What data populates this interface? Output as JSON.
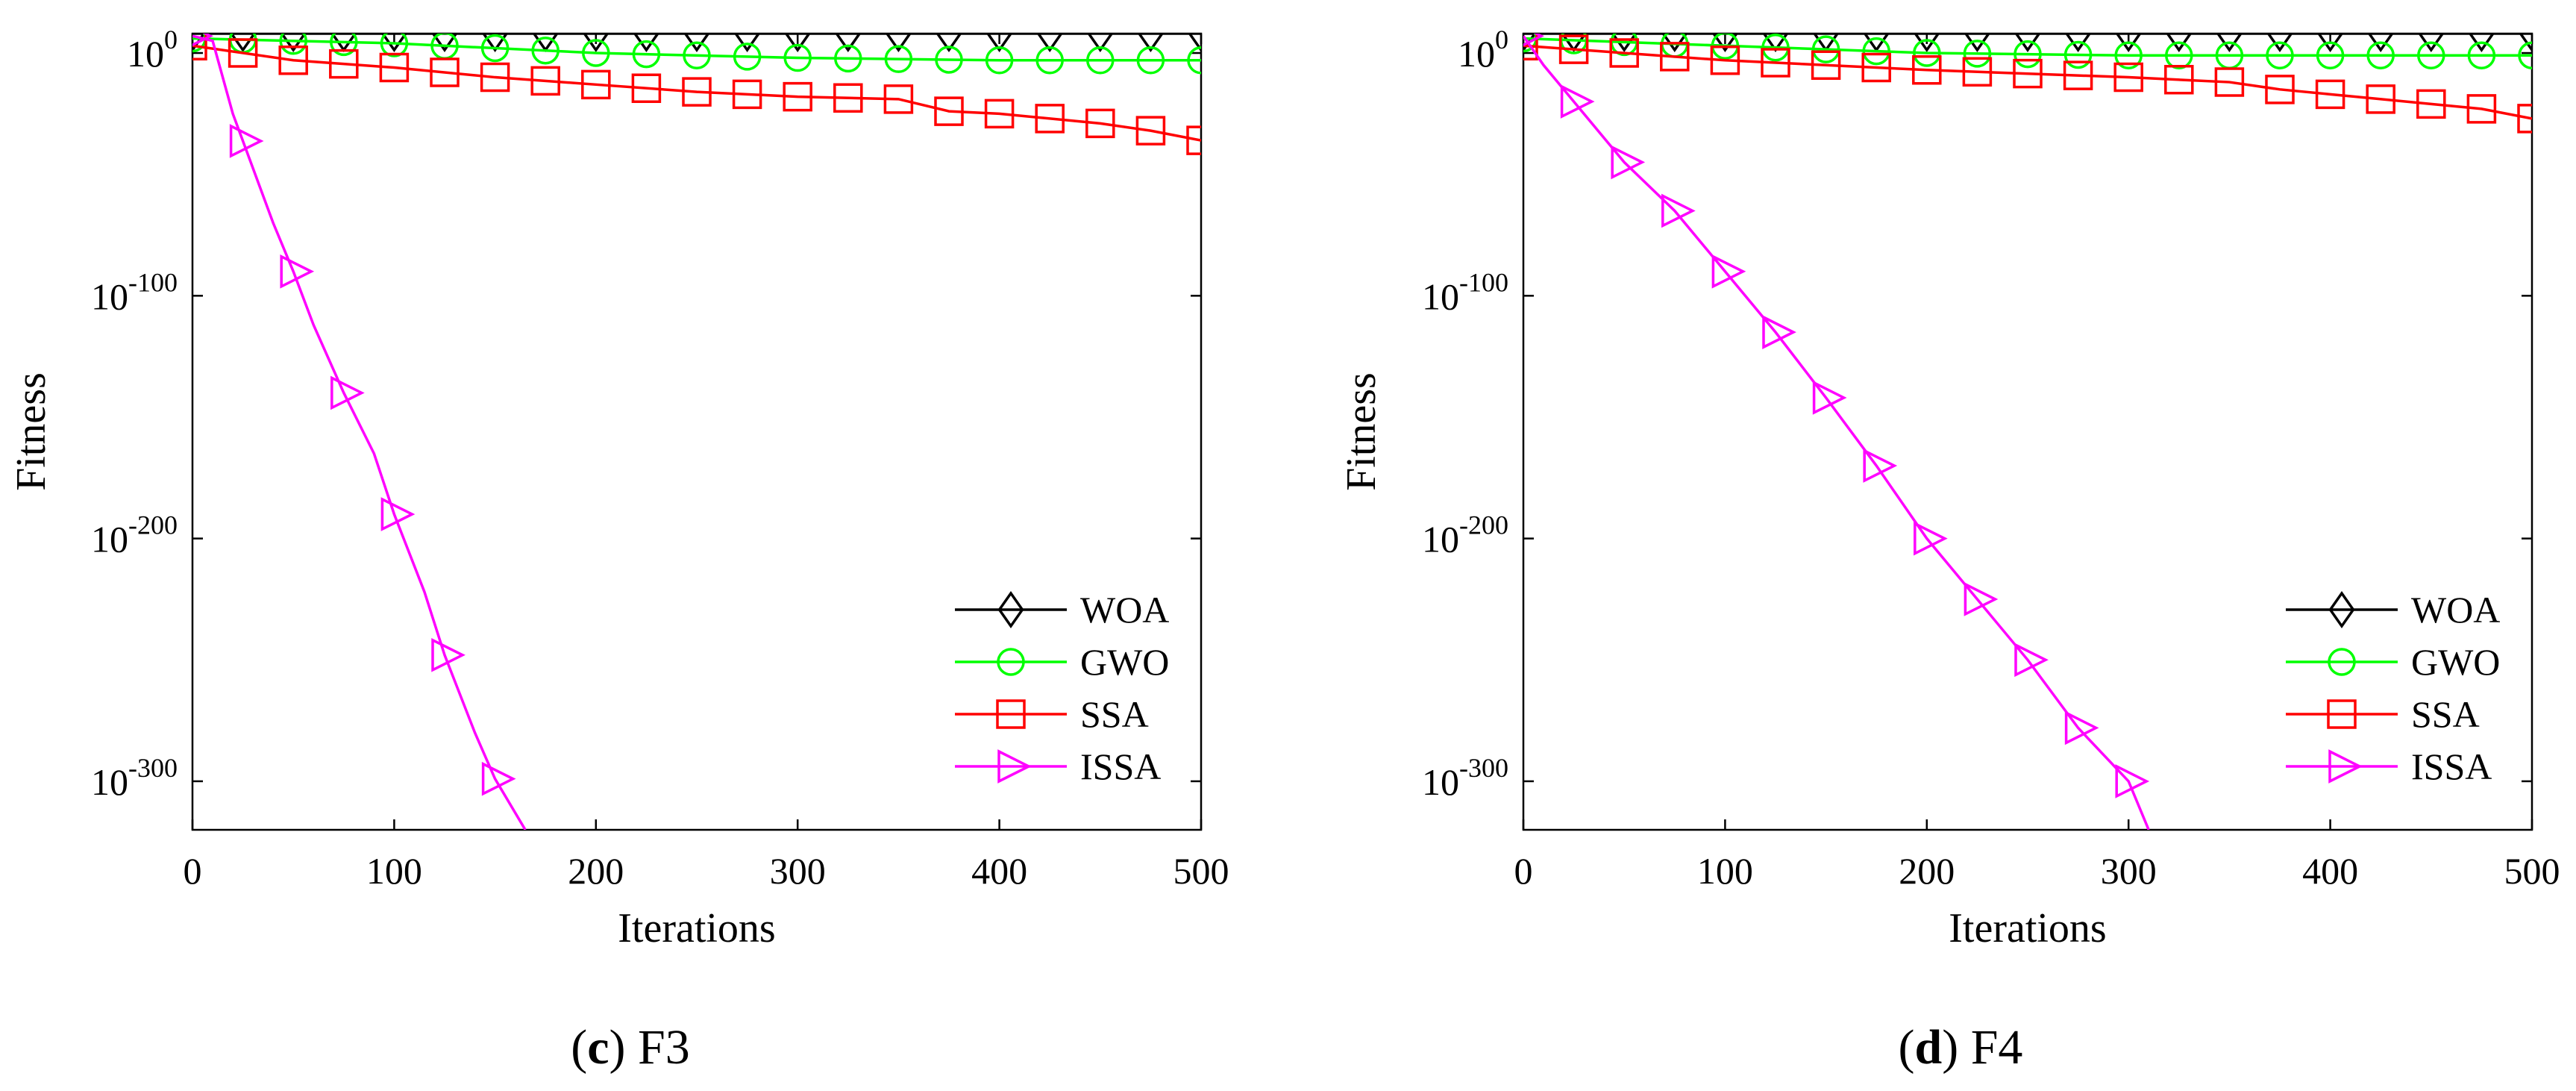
{
  "chart_data": [
    {
      "type": "line",
      "subplot_letter": "c",
      "caption": "F3",
      "xlabel": "Iterations",
      "ylabel": "Fitness",
      "x_scale": "linear",
      "y_scale": "log",
      "xlim": [
        0,
        500
      ],
      "ylim_exp": [
        -320,
        8
      ],
      "x_ticks": [
        0,
        100,
        200,
        300,
        400,
        500
      ],
      "y_ticks_exp": [
        0,
        -100,
        -200,
        -300
      ],
      "y_tick_base": "10",
      "grid": false,
      "legend_position": "bottom-right",
      "series": [
        {
          "name": "WOA",
          "color": "#000000",
          "marker": "diamond",
          "points_log10": [
            [
              0,
              8
            ],
            [
              500,
              8
            ]
          ]
        },
        {
          "name": "GWO",
          "color": "#00ff00",
          "marker": "circle",
          "points_log10": [
            [
              0,
              6
            ],
            [
              100,
              4
            ],
            [
              200,
              0
            ],
            [
              300,
              -2
            ],
            [
              400,
              -3
            ],
            [
              500,
              -3
            ]
          ]
        },
        {
          "name": "SSA",
          "color": "#ff0000",
          "marker": "square",
          "points_log10": [
            [
              0,
              3
            ],
            [
              50,
              -3
            ],
            [
              100,
              -6
            ],
            [
              150,
              -10
            ],
            [
              200,
              -13
            ],
            [
              250,
              -16
            ],
            [
              300,
              -18
            ],
            [
              350,
              -19
            ],
            [
              375,
              -24
            ],
            [
              400,
              -25
            ],
            [
              450,
              -29
            ],
            [
              475,
              -32
            ],
            [
              500,
              -36
            ]
          ]
        },
        {
          "name": "ISSA",
          "color": "#ff00ff",
          "marker": "triangle-right",
          "points_log10": [
            [
              0,
              7
            ],
            [
              10,
              5
            ],
            [
              20,
              -25
            ],
            [
              40,
              -70
            ],
            [
              50,
              -90
            ],
            [
              60,
              -112
            ],
            [
              75,
              -140
            ],
            [
              90,
              -165
            ],
            [
              100,
              -190
            ],
            [
              115,
              -222
            ],
            [
              125,
              -248
            ],
            [
              140,
              -280
            ],
            [
              150,
              -299
            ],
            [
              165,
              -320
            ]
          ]
        }
      ]
    },
    {
      "type": "line",
      "subplot_letter": "d",
      "caption": "F4",
      "xlabel": "Iterations",
      "ylabel": "Fitness",
      "x_scale": "linear",
      "y_scale": "log",
      "xlim": [
        0,
        500
      ],
      "ylim_exp": [
        -320,
        8
      ],
      "x_ticks": [
        0,
        100,
        200,
        300,
        400,
        500
      ],
      "y_ticks_exp": [
        0,
        -100,
        -200,
        -300
      ],
      "y_tick_base": "10",
      "grid": false,
      "legend_position": "bottom-right",
      "series": [
        {
          "name": "WOA",
          "color": "#000000",
          "marker": "diamond",
          "points_log10": [
            [
              0,
              8
            ],
            [
              500,
              8
            ]
          ]
        },
        {
          "name": "GWO",
          "color": "#00ff00",
          "marker": "circle",
          "points_log10": [
            [
              0,
              6
            ],
            [
              100,
              3
            ],
            [
              200,
              0
            ],
            [
              300,
              -1
            ],
            [
              400,
              -1
            ],
            [
              500,
              -1
            ]
          ]
        },
        {
          "name": "SSA",
          "color": "#ff0000",
          "marker": "square",
          "points_log10": [
            [
              0,
              3
            ],
            [
              100,
              -3
            ],
            [
              200,
              -7
            ],
            [
              300,
              -10
            ],
            [
              350,
              -12
            ],
            [
              375,
              -15
            ],
            [
              400,
              -17
            ],
            [
              450,
              -21
            ],
            [
              475,
              -23
            ],
            [
              500,
              -27
            ]
          ]
        },
        {
          "name": "ISSA",
          "color": "#ff00ff",
          "marker": "triangle-right",
          "points_log10": [
            [
              0,
              7
            ],
            [
              10,
              -5
            ],
            [
              25,
              -20
            ],
            [
              50,
              -45
            ],
            [
              75,
              -65
            ],
            [
              100,
              -90
            ],
            [
              125,
              -115
            ],
            [
              150,
              -142
            ],
            [
              175,
              -170
            ],
            [
              200,
              -200
            ],
            [
              225,
              -225
            ],
            [
              250,
              -250
            ],
            [
              275,
              -278
            ],
            [
              300,
              -300
            ],
            [
              310,
              -320
            ]
          ]
        }
      ]
    }
  ]
}
